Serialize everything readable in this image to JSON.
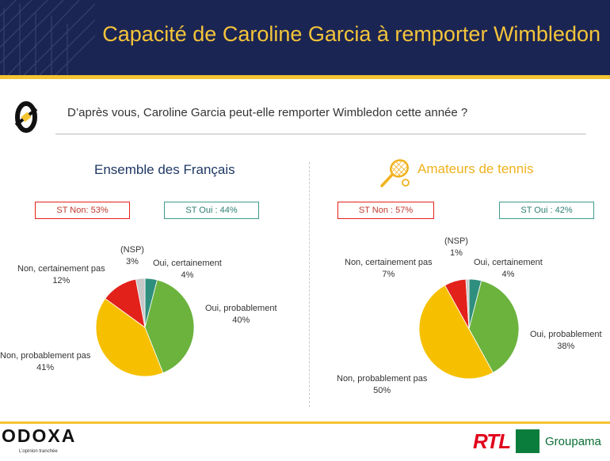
{
  "header": {
    "title": "Capacité de Caroline Garcia à remporter Wimbledon"
  },
  "question": "D’après vous, Caroline Garcia peut-elle remporter Wimbledon cette année ?",
  "colors": {
    "oui_certainement": "#2f8f7e",
    "oui_probablement": "#6cb33e",
    "non_probablement_pas": "#f6c000",
    "non_certainement_pas": "#e3211b",
    "nsp": "#c8c8c8"
  },
  "left": {
    "title": "Ensemble des Français",
    "st_non": "ST Non: 53%",
    "st_oui": "ST Oui : 44%",
    "labels": {
      "nsp_name": "(NSP)",
      "nsp_val": "3%",
      "oc_name": "Oui, certainement",
      "oc_val": "4%",
      "op_name": "Oui, probablement",
      "op_val": "40%",
      "npp_name": "Non, probablement pas",
      "npp_val": "41%",
      "ncp_name": "Non, certainement pas",
      "ncp_val": "12%"
    }
  },
  "right": {
    "title": "Amateurs de tennis",
    "icon": "tennis-racket-icon",
    "st_non": "ST Non : 57%",
    "st_oui": "ST Oui : 42%",
    "labels": {
      "nsp_name": "(NSP)",
      "nsp_val": "1%",
      "oc_name": "Oui, certainement",
      "oc_val": "4%",
      "op_name": "Oui, probablement",
      "op_val": "38%",
      "npp_name": "Non, probablement pas",
      "npp_val": "50%",
      "ncp_name": "Non, certainement pas",
      "ncp_val": "7%"
    }
  },
  "chart_data": [
    {
      "type": "pie",
      "title": "Ensemble des Français",
      "categories": [
        "Oui, certainement",
        "Oui, probablement",
        "Non, probablement pas",
        "Non, certainement pas",
        "(NSP)"
      ],
      "values": [
        4,
        40,
        41,
        12,
        3
      ]
    },
    {
      "type": "pie",
      "title": "Amateurs de tennis",
      "categories": [
        "Oui, certainement",
        "Oui, probablement",
        "Non, probablement pas",
        "Non, certainement pas",
        "(NSP)"
      ],
      "values": [
        4,
        38,
        50,
        7,
        1
      ]
    }
  ],
  "footer": {
    "brand": "ODOXA",
    "tagline": "L’opinion tranchée",
    "partner1": "RTL",
    "partner2": "Groupama"
  }
}
